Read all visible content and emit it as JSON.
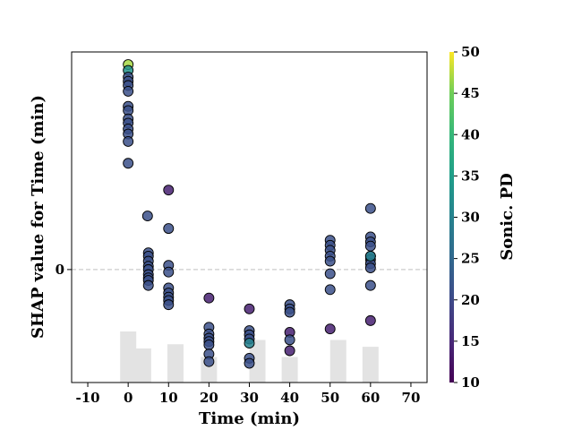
{
  "chart_data": {
    "type": "scatter",
    "title": "",
    "xlabel": "Time (min)",
    "ylabel": "SHAP value for Time (min)",
    "xlim": [
      -14,
      74
    ],
    "ylim": [
      -1.35,
      2.6
    ],
    "x_ticks": [
      -10,
      0,
      10,
      20,
      30,
      40,
      50,
      60,
      70
    ],
    "y_ticks": [
      0
    ],
    "reference_line": {
      "y": 0,
      "style": "dashed",
      "color": "#cccccc"
    },
    "grid": false,
    "colorbar": {
      "label": "Sonic. PD",
      "range": [
        10,
        50
      ],
      "ticks": [
        10,
        15,
        20,
        25,
        30,
        35,
        40,
        45,
        50
      ],
      "colormap": "viridis"
    },
    "histogram": {
      "color": "#e3e3e3",
      "bars": [
        {
          "x": 0,
          "count": 6
        },
        {
          "x": 3.7,
          "count": 4
        },
        {
          "x": 11.7,
          "count": 4.5
        },
        {
          "x": 20,
          "count": 3
        },
        {
          "x": 32,
          "count": 5
        },
        {
          "x": 40,
          "count": 3
        },
        {
          "x": 52,
          "count": 5
        },
        {
          "x": 60,
          "count": 4.2
        }
      ]
    },
    "points": [
      {
        "x": 0,
        "y": 2.45,
        "c": 47
      },
      {
        "x": 0,
        "y": 2.38,
        "c": 33
      },
      {
        "x": 0,
        "y": 2.3,
        "c": 21
      },
      {
        "x": 0,
        "y": 2.25,
        "c": 21
      },
      {
        "x": 0,
        "y": 2.2,
        "c": 21
      },
      {
        "x": 0,
        "y": 2.13,
        "c": 21
      },
      {
        "x": 0,
        "y": 1.95,
        "c": 21
      },
      {
        "x": 0,
        "y": 1.9,
        "c": 21
      },
      {
        "x": 0,
        "y": 1.8,
        "c": 21
      },
      {
        "x": 0,
        "y": 1.75,
        "c": 21
      },
      {
        "x": 0,
        "y": 1.68,
        "c": 21
      },
      {
        "x": 0,
        "y": 1.62,
        "c": 21
      },
      {
        "x": 0,
        "y": 1.53,
        "c": 21
      },
      {
        "x": 0,
        "y": 1.27,
        "c": 21
      },
      {
        "x": 5,
        "y": 0.2,
        "c": 21
      },
      {
        "x": 5,
        "y": 0.16,
        "c": 21
      },
      {
        "x": 5,
        "y": 0.1,
        "c": 21
      },
      {
        "x": 5,
        "y": 0.04,
        "c": 21
      },
      {
        "x": 5,
        "y": 0.0,
        "c": 21
      },
      {
        "x": 5,
        "y": -0.06,
        "c": 21
      },
      {
        "x": 5,
        "y": -0.1,
        "c": 21
      },
      {
        "x": 5,
        "y": -0.13,
        "c": 21
      },
      {
        "x": 5,
        "y": -0.19,
        "c": 21
      },
      {
        "x": 4.8,
        "y": 0.64,
        "c": 21
      },
      {
        "x": 10,
        "y": 0.95,
        "c": 14
      },
      {
        "x": 10,
        "y": 0.49,
        "c": 21
      },
      {
        "x": 10,
        "y": 0.05,
        "c": 21
      },
      {
        "x": 10,
        "y": -0.03,
        "c": 21
      },
      {
        "x": 10,
        "y": -0.22,
        "c": 21
      },
      {
        "x": 10,
        "y": -0.28,
        "c": 21
      },
      {
        "x": 10,
        "y": -0.33,
        "c": 21
      },
      {
        "x": 10,
        "y": -0.37,
        "c": 21
      },
      {
        "x": 10,
        "y": -0.42,
        "c": 21
      },
      {
        "x": 20,
        "y": -0.34,
        "c": 14
      },
      {
        "x": 20,
        "y": -0.69,
        "c": 21
      },
      {
        "x": 20,
        "y": -0.77,
        "c": 21
      },
      {
        "x": 20,
        "y": -0.82,
        "c": 21
      },
      {
        "x": 20,
        "y": -0.86,
        "c": 21
      },
      {
        "x": 20,
        "y": -0.9,
        "c": 21
      },
      {
        "x": 20,
        "y": -1.01,
        "c": 21
      },
      {
        "x": 20,
        "y": -1.1,
        "c": 21
      },
      {
        "x": 30,
        "y": -0.47,
        "c": 14
      },
      {
        "x": 30,
        "y": -0.73,
        "c": 21
      },
      {
        "x": 30,
        "y": -0.78,
        "c": 21
      },
      {
        "x": 30,
        "y": -0.83,
        "c": 21
      },
      {
        "x": 30,
        "y": -0.88,
        "c": 30
      },
      {
        "x": 30,
        "y": -1.06,
        "c": 21
      },
      {
        "x": 30,
        "y": -1.12,
        "c": 21
      },
      {
        "x": 40,
        "y": -0.42,
        "c": 21
      },
      {
        "x": 40,
        "y": -0.47,
        "c": 21
      },
      {
        "x": 40,
        "y": -0.51,
        "c": 21
      },
      {
        "x": 40,
        "y": -0.75,
        "c": 14
      },
      {
        "x": 40,
        "y": -0.84,
        "c": 21
      },
      {
        "x": 40,
        "y": -0.97,
        "c": 14
      },
      {
        "x": 50,
        "y": 0.35,
        "c": 21
      },
      {
        "x": 50,
        "y": 0.29,
        "c": 21
      },
      {
        "x": 50,
        "y": 0.23,
        "c": 21
      },
      {
        "x": 50,
        "y": 0.16,
        "c": 21
      },
      {
        "x": 50,
        "y": 0.1,
        "c": 21
      },
      {
        "x": 50,
        "y": -0.05,
        "c": 21
      },
      {
        "x": 50,
        "y": -0.24,
        "c": 21
      },
      {
        "x": 50,
        "y": -0.71,
        "c": 14
      },
      {
        "x": 60,
        "y": 0.73,
        "c": 21
      },
      {
        "x": 60,
        "y": 0.39,
        "c": 21
      },
      {
        "x": 60,
        "y": 0.33,
        "c": 21
      },
      {
        "x": 60,
        "y": 0.28,
        "c": 21
      },
      {
        "x": 60,
        "y": 0.16,
        "c": 21
      },
      {
        "x": 60,
        "y": 0.12,
        "c": 21
      },
      {
        "x": 60,
        "y": 0.07,
        "c": 21
      },
      {
        "x": 60,
        "y": 0.02,
        "c": 21
      },
      {
        "x": 60,
        "y": 0.16,
        "c": 30
      },
      {
        "x": 60,
        "y": -0.19,
        "c": 21
      },
      {
        "x": 60,
        "y": -0.61,
        "c": 14
      }
    ]
  }
}
